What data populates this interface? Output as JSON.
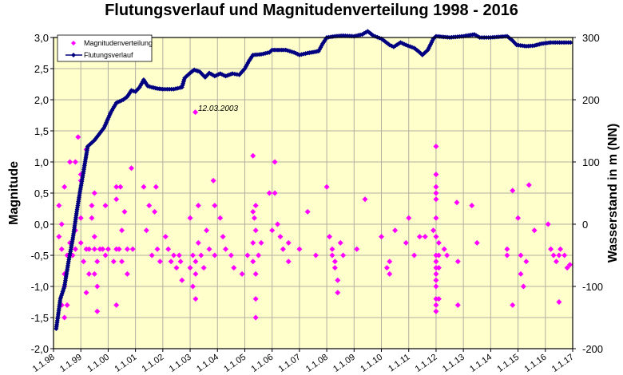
{
  "chart_data": {
    "type": "scatter+line",
    "title": "Flutungsverlauf und Magnitudenverteilung 1998 - 2016",
    "ylabel": "Magnitude",
    "y2label": "Wasserstand in m (NN)",
    "xlim": [
      1998,
      2017
    ],
    "ylim": [
      -2.0,
      3.0
    ],
    "y2lim": [
      -200,
      300
    ],
    "yticks": [
      "-2,0",
      "-1,5",
      "-1,0",
      "-0,5",
      "0,0",
      "0,5",
      "1,0",
      "1,5",
      "2,0",
      "2,5",
      "3,0"
    ],
    "y2ticks": [
      "-200",
      "-100",
      "0",
      "100",
      "200",
      "300"
    ],
    "xticks": [
      "1.1.98",
      "1.1.99",
      "1.1.00",
      "1.1.01",
      "1.1.02",
      "1.1.03",
      "1.1.04",
      "1.1.05",
      "1.1.06",
      "1.1.07",
      "1.1.08",
      "1.1.09",
      "1.1.10",
      "1.1.11",
      "1.1.12",
      "1.1.13",
      "1.1.14",
      "1.1.15",
      "1.1.16",
      "1.1.17"
    ],
    "grid": true,
    "legend_position": "top-left",
    "background_color": "#FFFFCC",
    "annotation": {
      "text": "12.03.2003",
      "x": 2003.19,
      "y": 1.8
    },
    "series": [
      {
        "name": "Magnitudenverteilung",
        "kind": "scatter",
        "axis": "left",
        "color": "#FF00FF",
        "marker": "diamond",
        "points": [
          [
            1998.2,
            0.3
          ],
          [
            1998.3,
            0.0
          ],
          [
            1998.2,
            -0.2
          ],
          [
            1998.4,
            0.6
          ],
          [
            1998.3,
            -0.4
          ],
          [
            1998.5,
            -0.5
          ],
          [
            1998.4,
            -0.8
          ],
          [
            1998.4,
            -1.0
          ],
          [
            1998.3,
            -1.3
          ],
          [
            1998.5,
            -1.3
          ],
          [
            1998.4,
            -1.5
          ],
          [
            1998.6,
            1.0
          ],
          [
            1998.8,
            1.0
          ],
          [
            1998.9,
            1.4
          ],
          [
            1998.6,
            -0.3
          ],
          [
            1998.7,
            -0.5
          ],
          [
            1998.8,
            -0.1
          ],
          [
            1998.8,
            -0.4
          ],
          [
            1999.0,
            0.8
          ],
          [
            1999.0,
            0.7
          ],
          [
            1999.0,
            0.1
          ],
          [
            1999.0,
            -0.3
          ],
          [
            1999.1,
            -0.6
          ],
          [
            1999.2,
            1.2
          ],
          [
            1999.2,
            -0.4
          ],
          [
            1999.3,
            -0.4
          ],
          [
            1999.3,
            -0.8
          ],
          [
            1999.2,
            -1.1
          ],
          [
            1999.4,
            0.3
          ],
          [
            1999.5,
            0.5
          ],
          [
            1999.4,
            0.1
          ],
          [
            1999.5,
            -0.2
          ],
          [
            1999.5,
            -0.4
          ],
          [
            1999.6,
            -0.6
          ],
          [
            1999.5,
            -0.8
          ],
          [
            1999.7,
            -0.4
          ],
          [
            1999.6,
            -1.0
          ],
          [
            1999.6,
            -1.4
          ],
          [
            1999.8,
            -0.4
          ],
          [
            1999.9,
            0.3
          ],
          [
            1999.9,
            -0.5
          ],
          [
            2000.3,
            -1.3
          ],
          [
            2000.0,
            -0.4
          ],
          [
            2000.3,
            0.6
          ],
          [
            2000.45,
            0.6
          ],
          [
            2000.3,
            0.4
          ],
          [
            2000.2,
            -0.6
          ],
          [
            2000.3,
            -0.4
          ],
          [
            2000.4,
            -0.4
          ],
          [
            2000.5,
            -0.6
          ],
          [
            2000.6,
            0.2
          ],
          [
            2000.5,
            -0.1
          ],
          [
            2000.7,
            -0.4
          ],
          [
            2000.7,
            -0.8
          ],
          [
            2000.85,
            0.9
          ],
          [
            2000.9,
            -0.4
          ],
          [
            2001.3,
            0.6
          ],
          [
            2001.5,
            0.3
          ],
          [
            2001.4,
            -0.1
          ],
          [
            2001.6,
            -0.5
          ],
          [
            2001.75,
            0.6
          ],
          [
            2001.7,
            0.2
          ],
          [
            2001.8,
            -0.4
          ],
          [
            2001.9,
            -0.6
          ],
          [
            2002.1,
            -0.2
          ],
          [
            2002.2,
            -0.4
          ],
          [
            2002.3,
            -0.6
          ],
          [
            2002.4,
            -0.5
          ],
          [
            2002.5,
            -0.7
          ],
          [
            2002.6,
            -0.5
          ],
          [
            2002.65,
            -0.6
          ],
          [
            2002.7,
            -0.9
          ],
          [
            2003.0,
            0.1
          ],
          [
            2003.1,
            -0.5
          ],
          [
            2003.0,
            -0.7
          ],
          [
            2003.2,
            -0.8
          ],
          [
            2003.19,
            1.8
          ],
          [
            2003.2,
            -0.6
          ],
          [
            2003.1,
            -1.0
          ],
          [
            2003.2,
            -1.2
          ],
          [
            2003.3,
            0.3
          ],
          [
            2003.3,
            -0.3
          ],
          [
            2003.4,
            -0.5
          ],
          [
            2003.5,
            -0.7
          ],
          [
            2003.6,
            -0.1
          ],
          [
            2003.7,
            -0.4
          ],
          [
            2003.85,
            0.7
          ],
          [
            2003.9,
            0.3
          ],
          [
            2003.9,
            -0.5
          ],
          [
            2004.1,
            0.1
          ],
          [
            2004.2,
            -0.2
          ],
          [
            2004.3,
            -0.4
          ],
          [
            2004.5,
            -0.5
          ],
          [
            2004.6,
            -0.7
          ],
          [
            2004.9,
            -0.8
          ],
          [
            2005.1,
            -0.5
          ],
          [
            2005.3,
            1.1
          ],
          [
            2005.3,
            0.2
          ],
          [
            2005.4,
            0.3
          ],
          [
            2005.35,
            0.1
          ],
          [
            2005.4,
            -0.1
          ],
          [
            2005.3,
            -0.3
          ],
          [
            2005.5,
            -0.5
          ],
          [
            2005.3,
            -0.6
          ],
          [
            2005.4,
            -0.8
          ],
          [
            2005.4,
            -1.2
          ],
          [
            2005.4,
            -1.5
          ],
          [
            2005.6,
            -0.3
          ],
          [
            2005.9,
            0.5
          ],
          [
            2006.1,
            1.0
          ],
          [
            2006.1,
            0.5
          ],
          [
            2006.2,
            0.0
          ],
          [
            2006.0,
            -0.1
          ],
          [
            2006.3,
            -0.2
          ],
          [
            2006.4,
            -0.4
          ],
          [
            2006.6,
            -0.3
          ],
          [
            2006.6,
            -0.6
          ],
          [
            2007.0,
            -0.4
          ],
          [
            2007.3,
            0.2
          ],
          [
            2007.6,
            -0.5
          ],
          [
            2008.0,
            0.6
          ],
          [
            2008.1,
            -0.2
          ],
          [
            2008.2,
            -0.4
          ],
          [
            2008.3,
            -0.6
          ],
          [
            2008.3,
            -0.7
          ],
          [
            2008.4,
            -0.9
          ],
          [
            2008.4,
            -1.1
          ],
          [
            2008.2,
            -0.5
          ],
          [
            2008.5,
            -0.3
          ],
          [
            2008.6,
            -0.5
          ],
          [
            2009.1,
            -0.4
          ],
          [
            2009.4,
            0.4
          ],
          [
            2010.0,
            -0.2
          ],
          [
            2010.3,
            -0.6
          ],
          [
            2010.2,
            -0.7
          ],
          [
            2010.3,
            -0.8
          ],
          [
            2010.5,
            -0.1
          ],
          [
            2010.9,
            -0.3
          ],
          [
            2011.0,
            0.1
          ],
          [
            2011.2,
            -0.5
          ],
          [
            2011.4,
            -0.2
          ],
          [
            2011.6,
            -0.2
          ],
          [
            2011.9,
            -0.1
          ],
          [
            2012.0,
            1.25
          ],
          [
            2012.0,
            0.8
          ],
          [
            2012.0,
            0.6
          ],
          [
            2012.0,
            0.5
          ],
          [
            2012.0,
            0.4
          ],
          [
            2012.0,
            0.1
          ],
          [
            2012.0,
            -0.2
          ],
          [
            2012.0,
            -0.5
          ],
          [
            2012.0,
            -0.6
          ],
          [
            2012.0,
            -0.7
          ],
          [
            2012.0,
            -0.8
          ],
          [
            2012.0,
            -0.9
          ],
          [
            2012.0,
            -1.0
          ],
          [
            2012.0,
            -1.2
          ],
          [
            2012.0,
            -1.3
          ],
          [
            2012.0,
            -1.4
          ],
          [
            2012.1,
            -0.5
          ],
          [
            2012.1,
            -0.7
          ],
          [
            2012.1,
            -1.2
          ],
          [
            2012.1,
            -0.3
          ],
          [
            2012.3,
            -0.4
          ],
          [
            2012.4,
            -0.5
          ],
          [
            2012.76,
            0.35
          ],
          [
            2012.8,
            -0.6
          ],
          [
            2012.8,
            -1.3
          ],
          [
            2013.31,
            0.3
          ],
          [
            2013.5,
            -0.3
          ],
          [
            2014.6,
            -0.4
          ],
          [
            2014.6,
            -0.5
          ],
          [
            2014.8,
            0.54
          ],
          [
            2015.0,
            0.1
          ],
          [
            2015.1,
            -0.5
          ],
          [
            2015.1,
            -0.8
          ],
          [
            2015.2,
            -1.0
          ],
          [
            2015.4,
            0.63
          ],
          [
            2015.3,
            -0.6
          ],
          [
            2014.8,
            -1.3
          ],
          [
            2015.6,
            -0.1
          ],
          [
            2016.1,
            0.0
          ],
          [
            2016.2,
            -0.4
          ],
          [
            2016.3,
            -0.5
          ],
          [
            2016.4,
            -0.6
          ],
          [
            2016.5,
            -0.5
          ],
          [
            2016.55,
            -0.4
          ],
          [
            2016.7,
            -0.5
          ],
          [
            2016.8,
            -0.7
          ],
          [
            2016.5,
            -1.25
          ],
          [
            2016.9,
            -0.65
          ]
        ]
      },
      {
        "name": "Flutungsverlauf",
        "kind": "line",
        "axis": "right",
        "color": "#000080",
        "marker": "diamond",
        "points": [
          [
            1998.1,
            -168
          ],
          [
            1998.25,
            -120
          ],
          [
            1998.4,
            -100
          ],
          [
            1998.55,
            -60
          ],
          [
            1998.7,
            -25
          ],
          [
            1998.85,
            20
          ],
          [
            1998.96,
            50
          ],
          [
            1999.1,
            85
          ],
          [
            1999.25,
            125
          ],
          [
            1999.5,
            135
          ],
          [
            1999.85,
            155
          ],
          [
            2000.1,
            180
          ],
          [
            2000.3,
            195
          ],
          [
            2000.55,
            200
          ],
          [
            2000.7,
            205
          ],
          [
            2000.85,
            215
          ],
          [
            2001.0,
            213
          ],
          [
            2001.15,
            220
          ],
          [
            2001.3,
            232
          ],
          [
            2001.45,
            222
          ],
          [
            2001.6,
            220
          ],
          [
            2001.8,
            218
          ],
          [
            2002.0,
            217
          ],
          [
            2002.4,
            217
          ],
          [
            2002.7,
            220
          ],
          [
            2002.8,
            235
          ],
          [
            2003.0,
            243
          ],
          [
            2003.15,
            248
          ],
          [
            2003.35,
            245
          ],
          [
            2003.55,
            236
          ],
          [
            2003.7,
            243
          ],
          [
            2003.9,
            238
          ],
          [
            2004.1,
            242
          ],
          [
            2004.3,
            238
          ],
          [
            2004.55,
            242
          ],
          [
            2004.8,
            240
          ],
          [
            2005.0,
            250
          ],
          [
            2005.15,
            262
          ],
          [
            2005.3,
            272
          ],
          [
            2005.6,
            273
          ],
          [
            2005.9,
            276
          ],
          [
            2006.0,
            280
          ],
          [
            2006.5,
            280
          ],
          [
            2006.8,
            276
          ],
          [
            2007.0,
            272
          ],
          [
            2007.3,
            275
          ],
          [
            2007.7,
            278
          ],
          [
            2007.85,
            290
          ],
          [
            2008.0,
            300
          ],
          [
            2008.3,
            302
          ],
          [
            2008.6,
            303
          ],
          [
            2009.0,
            302
          ],
          [
            2009.3,
            305
          ],
          [
            2009.5,
            310
          ],
          [
            2009.7,
            303
          ],
          [
            2010.0,
            298
          ],
          [
            2010.3,
            288
          ],
          [
            2010.45,
            285
          ],
          [
            2010.7,
            292
          ],
          [
            2010.9,
            288
          ],
          [
            2011.2,
            283
          ],
          [
            2011.35,
            278
          ],
          [
            2011.5,
            272
          ],
          [
            2011.7,
            280
          ],
          [
            2011.9,
            298
          ],
          [
            2012.0,
            302
          ],
          [
            2012.5,
            300
          ],
          [
            2013.0,
            302
          ],
          [
            2013.4,
            305
          ],
          [
            2013.6,
            300
          ],
          [
            2014.0,
            300
          ],
          [
            2014.6,
            302
          ],
          [
            2014.8,
            295
          ],
          [
            2014.95,
            288
          ],
          [
            2015.3,
            286
          ],
          [
            2015.6,
            287
          ],
          [
            2015.85,
            290
          ],
          [
            2016.2,
            292
          ],
          [
            2016.6,
            292
          ],
          [
            2017.0,
            292
          ]
        ]
      }
    ]
  }
}
